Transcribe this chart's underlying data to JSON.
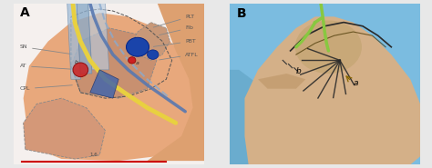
{
  "fig_width": 4.74,
  "fig_height": 1.85,
  "dpi": 100,
  "bg_color": "#e8e8e8",
  "panel_a": {
    "label": "A",
    "panel_bg": "#f5f0ee",
    "bg_skin": "#e8a87c",
    "bg_skin_light": "#eec0a0",
    "heel_bg": "#e0a888",
    "ankle_bone_fill": "#d49878",
    "ankle_bone_edge": "#888888",
    "blue_sheath1": "#a0bcd8",
    "blue_sheath2": "#8aaac8",
    "blue_sheath3": "#b8cce0",
    "tendon_yellow": "#e8d040",
    "tendon_blue_dark": "#5878b0",
    "nodes_blue": "#1a44aa",
    "node_red_large": "#cc2020",
    "node_red_small": "#cc2020",
    "annotation_color": "#555555",
    "red_line_color": "#cc0000",
    "labels_right": [
      "PLT",
      "Fib",
      "PBT",
      "ATFL"
    ],
    "labels_left": [
      "SN",
      "AT",
      "CPL"
    ],
    "scale_label": "1.6",
    "panel_label_fontsize": 10
  },
  "panel_b": {
    "label": "B",
    "bg_blue_top": "#7bbce0",
    "bg_blue_left": "#6aaad4",
    "skin_main": "#d4b088",
    "skin_dark": "#c49870",
    "skin_heel": "#c8a878",
    "malleolus_fill": "#c8a878",
    "line_green": "#88c840",
    "line_dark": "#2a2a2a",
    "label_a": "a",
    "label_b": "b",
    "panel_label_fontsize": 10
  },
  "white_border": "#ffffff",
  "gray_border": "#d0d0d0"
}
